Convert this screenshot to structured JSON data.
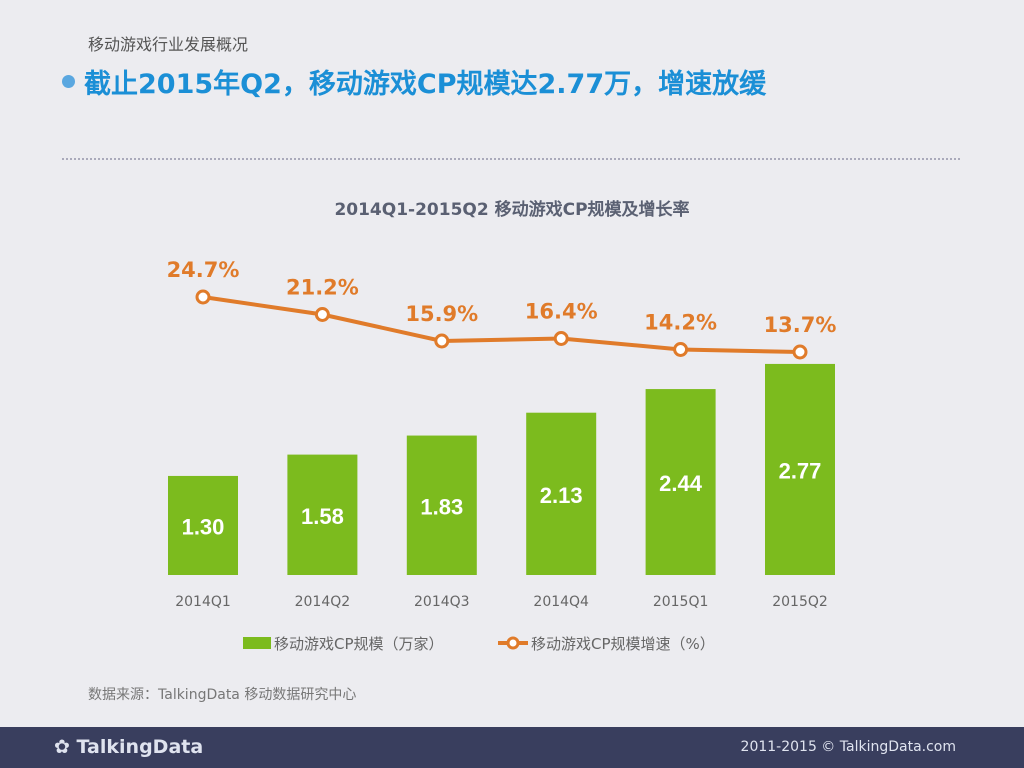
{
  "header": {
    "subtitle": "移动游戏行业发展概况",
    "title": "截止2015年Q2，移动游戏CP规模达2.77万，增速放缓"
  },
  "chart_data": {
    "type": "bar+line",
    "title": "2014Q1-2015Q2 移动游戏CP规模及增长率",
    "categories": [
      "2014Q1",
      "2014Q2",
      "2014Q3",
      "2014Q4",
      "2015Q1",
      "2015Q2"
    ],
    "series": [
      {
        "name": "移动游戏CP规模（万家）",
        "type": "bar",
        "color": "#7cbb1e",
        "values": [
          1.3,
          1.58,
          1.83,
          2.13,
          2.44,
          2.77
        ],
        "labels": [
          "1.30",
          "1.58",
          "1.83",
          "2.13",
          "2.44",
          "2.77"
        ]
      },
      {
        "name": "移动游戏CP规模增速（%）",
        "type": "line",
        "color": "#e07b2a",
        "values": [
          24.7,
          21.2,
          15.9,
          16.4,
          14.2,
          13.7
        ],
        "labels": [
          "24.7%",
          "21.2%",
          "15.9%",
          "16.4%",
          "14.2%",
          "13.7%"
        ]
      }
    ],
    "legend": "bottom",
    "grid": false
  },
  "source": "数据来源：TalkingData 移动数据研究中心",
  "footer": {
    "logo": "TalkingData",
    "copyright": "2011-2015 © TalkingData.com"
  }
}
